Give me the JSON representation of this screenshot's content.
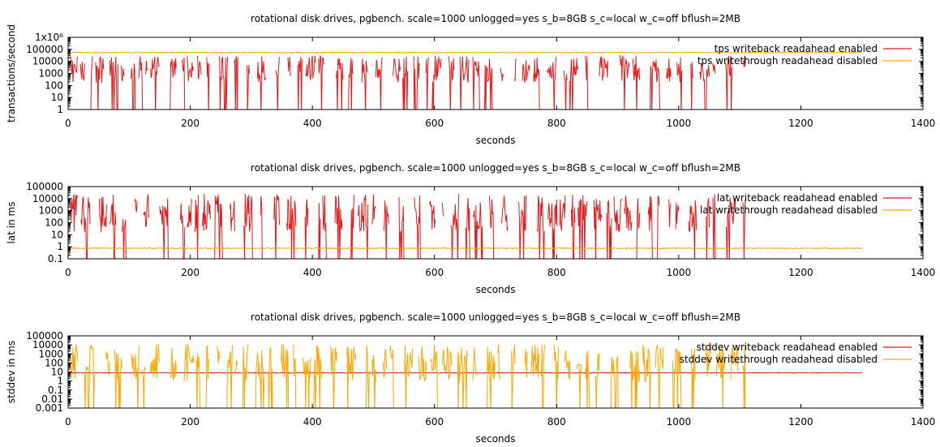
{
  "chart_data": [
    {
      "type": "line",
      "title": "rotational disk drives, pgbench. scale=1000 unlogged=yes s_b=8GB s_c=local w_c=off bflush=2MB",
      "xlabel": "seconds",
      "ylabel": "transactions/second",
      "xlim": [
        0,
        1400
      ],
      "ylim": [
        1,
        1000000
      ],
      "yscale": "log",
      "grid": false,
      "legend_position": "top-right",
      "x_ticks": [
        "0",
        "200",
        "400",
        "600",
        "800",
        "1000",
        "1200",
        "1400"
      ],
      "y_ticks": [
        "1",
        "10",
        "100",
        "1000",
        "10000",
        "100000",
        "1x10⁶"
      ],
      "series": [
        {
          "name": "tps writeback readahead enabled",
          "color": "#e41a1c",
          "x_range": [
            0,
            1110
          ],
          "typical_range": [
            10,
            30000
          ],
          "pattern": "sparse-spiky"
        },
        {
          "name": "tps writethrough readahead disabled",
          "color": "#ffa500",
          "x_range": [
            0,
            1300
          ],
          "typical_value": 55000,
          "pattern": "steady-noisy"
        }
      ]
    },
    {
      "type": "line",
      "title": "rotational disk drives, pgbench. scale=1000 unlogged=yes s_b=8GB s_c=local w_c=off bflush=2MB",
      "xlabel": "seconds",
      "ylabel": "lat in ms",
      "xlim": [
        0,
        1400
      ],
      "ylim": [
        0.1,
        100000
      ],
      "yscale": "log",
      "grid": false,
      "legend_position": "top-right",
      "x_ticks": [
        "0",
        "200",
        "400",
        "600",
        "800",
        "1000",
        "1200",
        "1400"
      ],
      "y_ticks": [
        "0.1",
        "1",
        "10",
        "100",
        "1000",
        "10000",
        "100000"
      ],
      "series": [
        {
          "name": "lat writeback readahead enabled",
          "color": "#e41a1c",
          "x_range": [
            0,
            1110
          ],
          "typical_range": [
            0.3,
            25000
          ],
          "pattern": "sparse-spiky"
        },
        {
          "name": "lat writethrough readahead disabled",
          "color": "#ffa500",
          "x_range": [
            0,
            1300
          ],
          "typical_value": 0.75,
          "pattern": "steady-noisy"
        }
      ]
    },
    {
      "type": "line",
      "title": "rotational disk drives, pgbench. scale=1000 unlogged=yes s_b=8GB s_c=local w_c=off bflush=2MB",
      "xlabel": "seconds",
      "ylabel": "stddev in ms",
      "xlim": [
        0,
        1400
      ],
      "ylim": [
        0.001,
        100000
      ],
      "yscale": "log",
      "grid": false,
      "legend_position": "top-right",
      "x_ticks": [
        "0",
        "200",
        "400",
        "600",
        "800",
        "1000",
        "1200",
        "1400"
      ],
      "y_ticks": [
        "0.001",
        "0.01",
        "0.1",
        "1",
        "10",
        "100",
        "1000",
        "10000",
        "100000"
      ],
      "series": [
        {
          "name": "stddev writeback readahead enabled",
          "color": "#e41a1c",
          "x_range": [
            0,
            1300
          ],
          "typical_value": 8,
          "pattern": "steady-noisy"
        },
        {
          "name": "stddev writethrough readahead disabled",
          "color": "#ffa500",
          "x_range": [
            0,
            1110
          ],
          "typical_range": [
            0.005,
            12000
          ],
          "pattern": "sparse-spiky"
        }
      ]
    }
  ]
}
